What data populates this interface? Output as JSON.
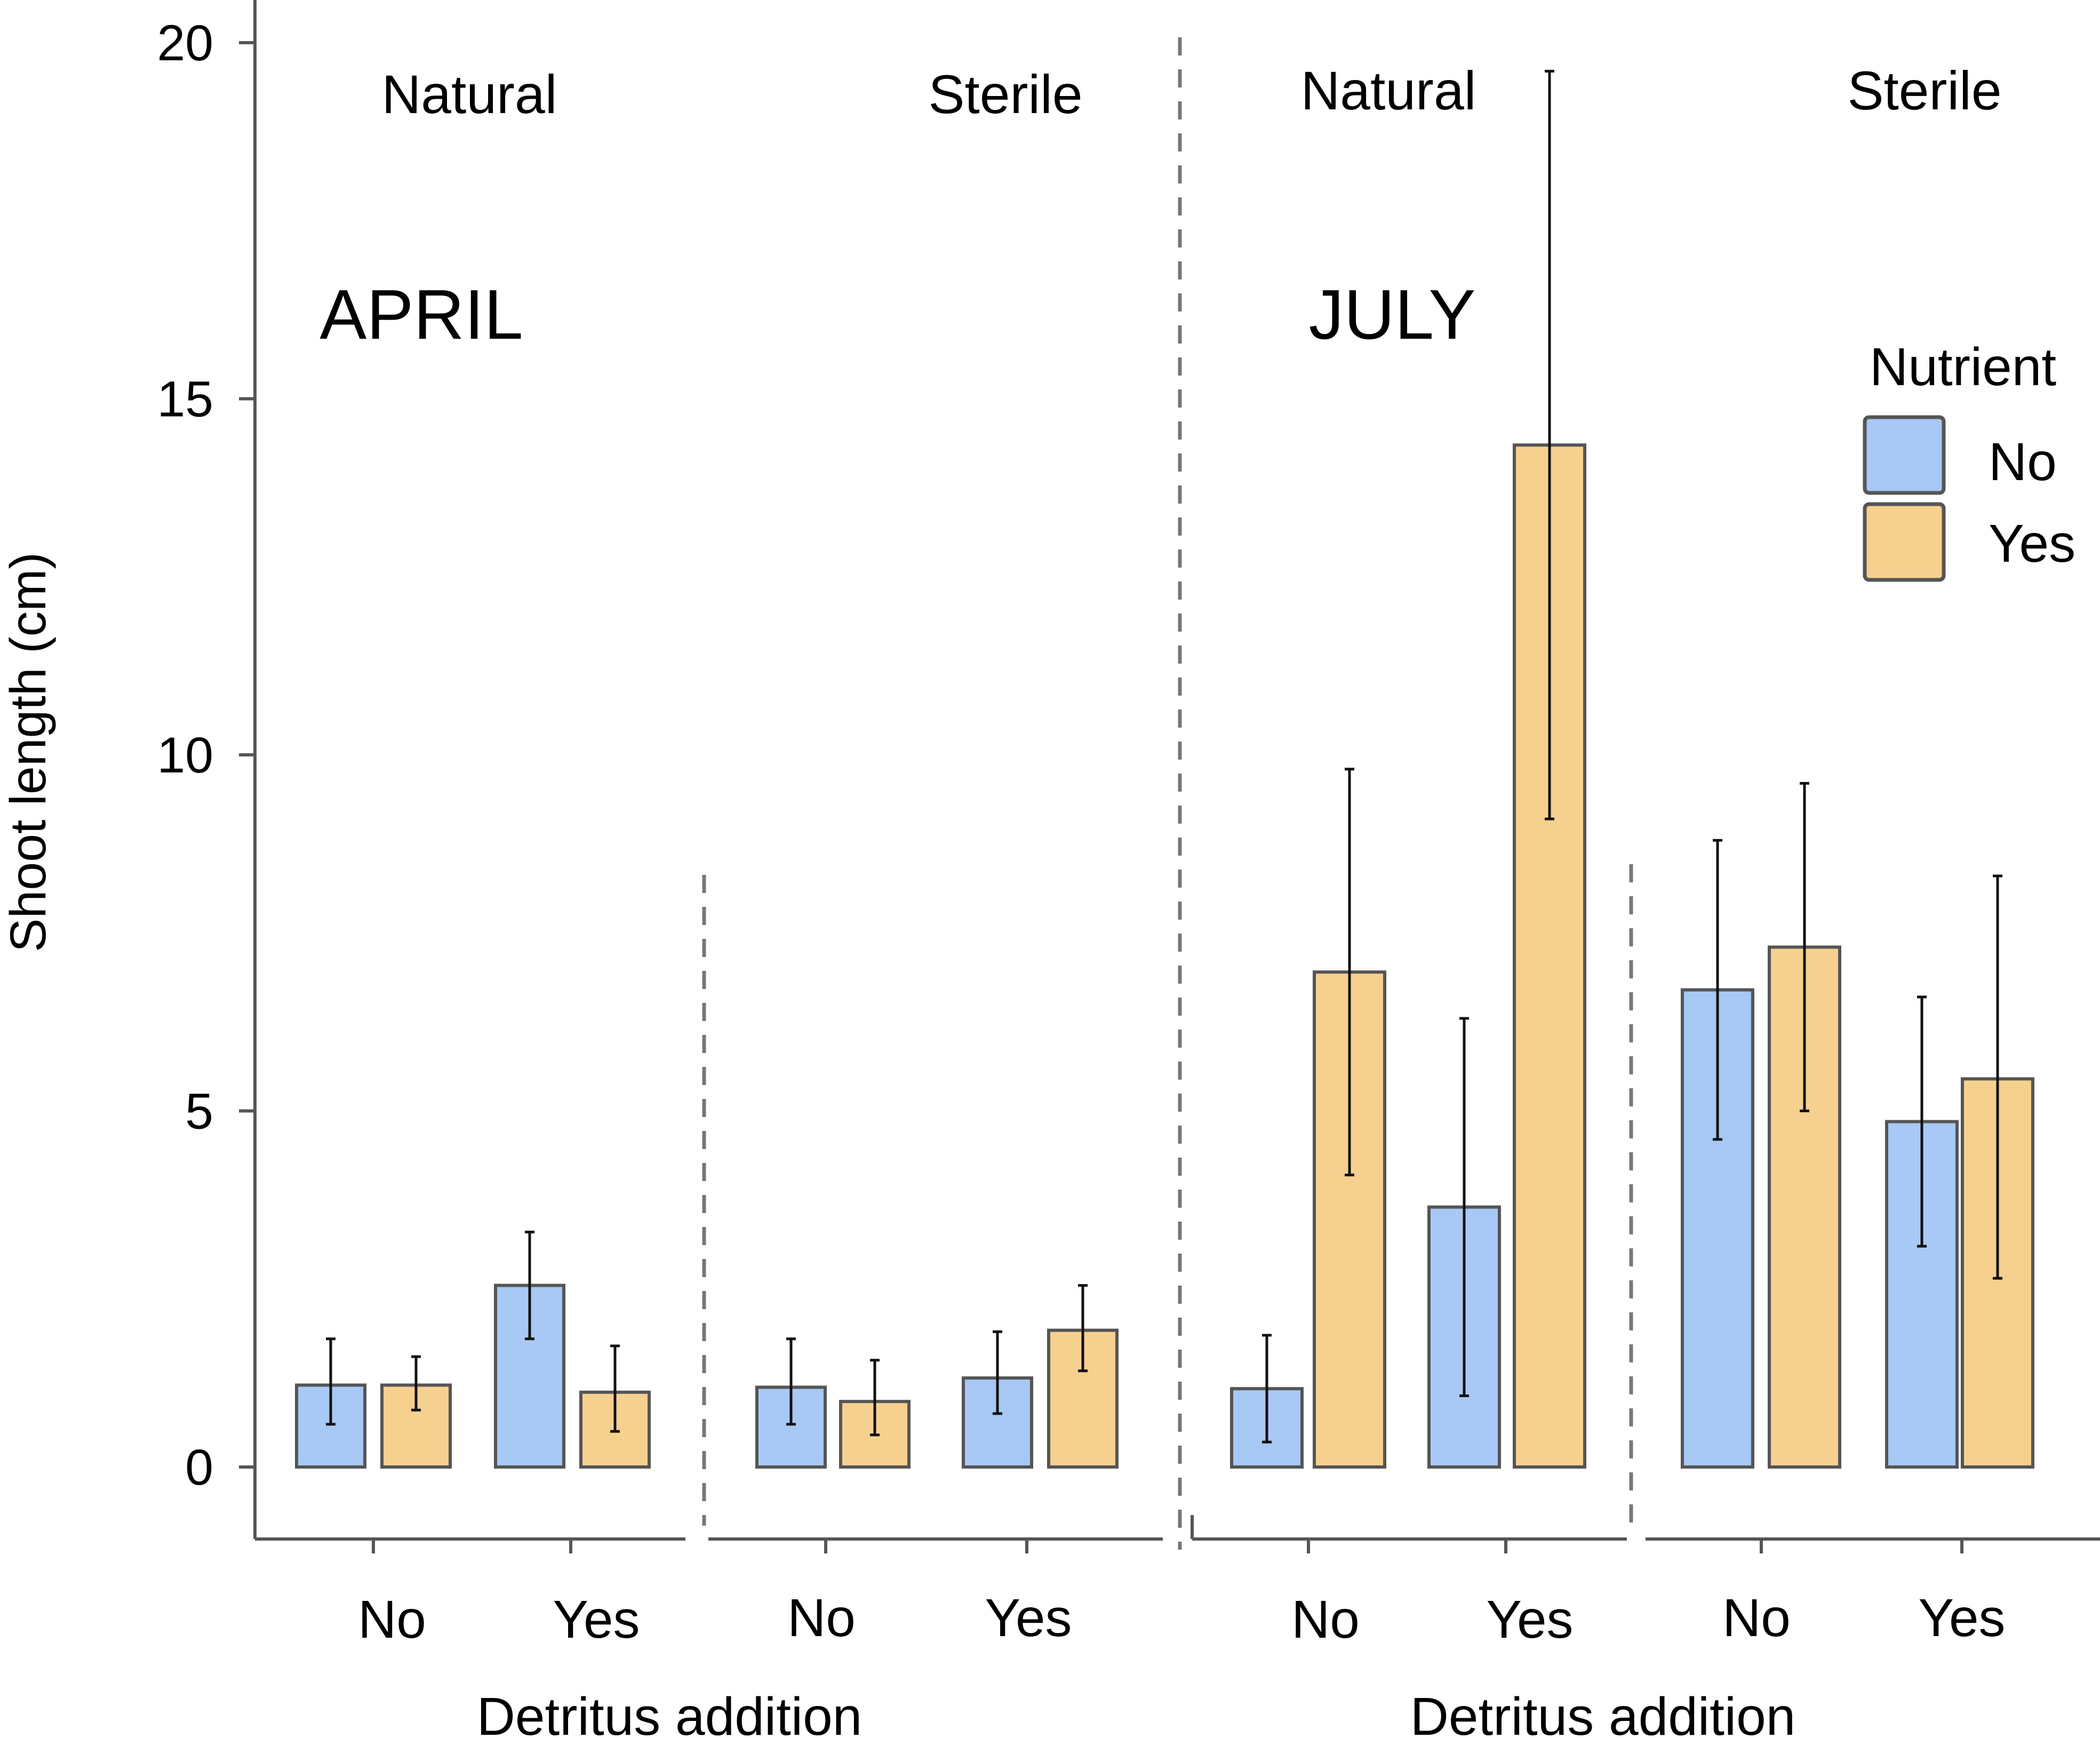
{
  "chart_data": {
    "type": "bar",
    "title": "",
    "ylabel": "Shoot length (cm)",
    "xlabel": "Detritus addition",
    "ylim": [
      0,
      20
    ],
    "yticks": [
      0,
      5,
      10,
      15,
      20
    ],
    "legend": {
      "title": "Nutrient",
      "placement": "right",
      "entries": [
        {
          "name": "No",
          "color": "#a8c8f5"
        },
        {
          "name": "Yes",
          "color": "#f6d08f"
        }
      ]
    },
    "panels": [
      {
        "month": "APRIL",
        "xlabel": "Detritus addition",
        "groups": [
          {
            "label": "Natural",
            "categories": [
              "No",
              "Yes"
            ],
            "series": [
              {
                "name": "No",
                "values": [
                  1.15,
                  2.55
                ],
                "err_low": [
                  0.6,
                  1.8
                ],
                "err_high": [
                  1.8,
                  3.3
                ]
              },
              {
                "name": "Yes",
                "values": [
                  1.15,
                  1.05
                ],
                "err_low": [
                  0.8,
                  0.5
                ],
                "err_high": [
                  1.55,
                  1.7
                ]
              }
            ]
          },
          {
            "label": "Sterile",
            "categories": [
              "No",
              "Yes"
            ],
            "series": [
              {
                "name": "No",
                "values": [
                  1.12,
                  1.25
                ],
                "err_low": [
                  0.6,
                  0.75
                ],
                "err_high": [
                  1.8,
                  1.9
                ]
              },
              {
                "name": "Yes",
                "values": [
                  0.92,
                  1.92
                ],
                "err_low": [
                  0.45,
                  1.35
                ],
                "err_high": [
                  1.5,
                  2.55
                ]
              }
            ]
          }
        ]
      },
      {
        "month": "JULY",
        "xlabel": "Detritus addition",
        "groups": [
          {
            "label": "Natural",
            "categories": [
              "No",
              "Yes"
            ],
            "series": [
              {
                "name": "No",
                "values": [
                  1.1,
                  3.65
                ],
                "err_low": [
                  0.35,
                  1.0
                ],
                "err_high": [
                  1.85,
                  6.3
                ]
              },
              {
                "name": "Yes",
                "values": [
                  6.95,
                  14.35
                ],
                "err_low": [
                  4.1,
                  9.1
                ],
                "err_high": [
                  9.8,
                  19.6
                ]
              }
            ]
          },
          {
            "label": "Sterile",
            "categories": [
              "No",
              "Yes"
            ],
            "series": [
              {
                "name": "No",
                "values": [
                  6.7,
                  4.85
                ],
                "err_low": [
                  4.6,
                  3.1
                ],
                "err_high": [
                  8.8,
                  6.6
                ]
              },
              {
                "name": "Yes",
                "values": [
                  7.3,
                  5.45
                ],
                "err_low": [
                  5.0,
                  2.65
                ],
                "err_high": [
                  9.6,
                  8.3
                ]
              }
            ]
          }
        ]
      }
    ]
  }
}
